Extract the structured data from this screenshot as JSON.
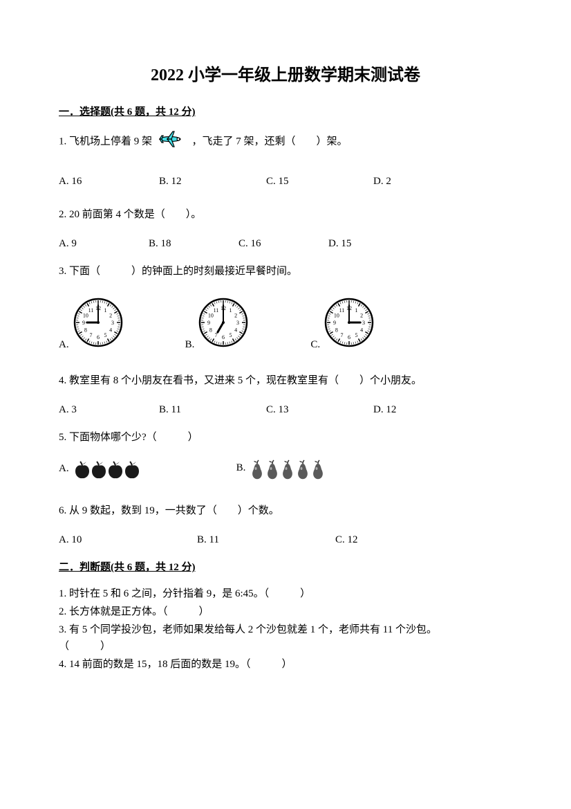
{
  "title": "2022 小学一年级上册数学期末测试卷",
  "section1": {
    "header": "一．选择题(共 6 题，共 12 分)",
    "q1": {
      "text_a": "1. 飞机场上停着 9 架",
      "text_b": "，飞走了 7 架，还剩（　　）架。",
      "opts": {
        "a": "A. 16",
        "b": "B. 12",
        "c": "C. 15",
        "d": "D. 2"
      }
    },
    "q2": {
      "text": "2. 20 前面第 4 个数是（　　）。",
      "opts": {
        "a": "A. 9",
        "b": "B. 18",
        "c": "C. 16",
        "d": "D. 15"
      }
    },
    "q3": {
      "text": "3. 下面（　　　）的钟面上的时刻最接近早餐时间。",
      "opts": {
        "a": "A.",
        "b": "B.",
        "c": "C."
      },
      "clocks": {
        "a": {
          "hour": 9,
          "minute": 0
        },
        "b": {
          "hour": 7,
          "minute": 0
        },
        "c": {
          "hour": 3,
          "minute": 0
        }
      }
    },
    "q4": {
      "text": "4. 教室里有 8 个小朋友在看书，又进来 5 个，现在教室里有（　　）个小朋友。",
      "opts": {
        "a": "A. 3",
        "b": "B. 11",
        "c": "C. 13",
        "d": "D. 12"
      }
    },
    "q5": {
      "text": "5. 下面物体哪个少?（　　　）",
      "opts": {
        "a": "A.",
        "b": "B."
      },
      "apple_count": 4,
      "pear_count": 5
    },
    "q6": {
      "text": "6. 从 9 数起，数到 19，一共数了（　　）个数。",
      "opts": {
        "a": "A. 10",
        "b": "B. 11",
        "c": "C. 12"
      }
    }
  },
  "section2": {
    "header": "二．判断题(共 6 题，共 12 分)",
    "items": {
      "j1": "1. 时针在 5 和 6 之间，分针指着 9，是 6:45。（　　　）",
      "j2": "2. 长方体就是正方体。（　　　）",
      "j3": "3. 有 5 个同学投沙包，老师如果发给每人 2 个沙包就差 1 个，老师共有 11 个沙包。　　　　（　　　）",
      "j4": "4. 14 前面的数是 15，18 后面的数是 19。（　　　）"
    }
  },
  "colors": {
    "text": "#000000",
    "background": "#ffffff",
    "plane_body": "#44e0e8",
    "plane_outline": "#000000"
  },
  "clock_style": {
    "size": 72,
    "stroke": "#000000",
    "stroke_width": 2,
    "face_fill": "#ffffff"
  },
  "fruit_style": {
    "apple_fill": "#1a1a1a",
    "pear_fill": "#5a5a5a",
    "size": 26
  }
}
